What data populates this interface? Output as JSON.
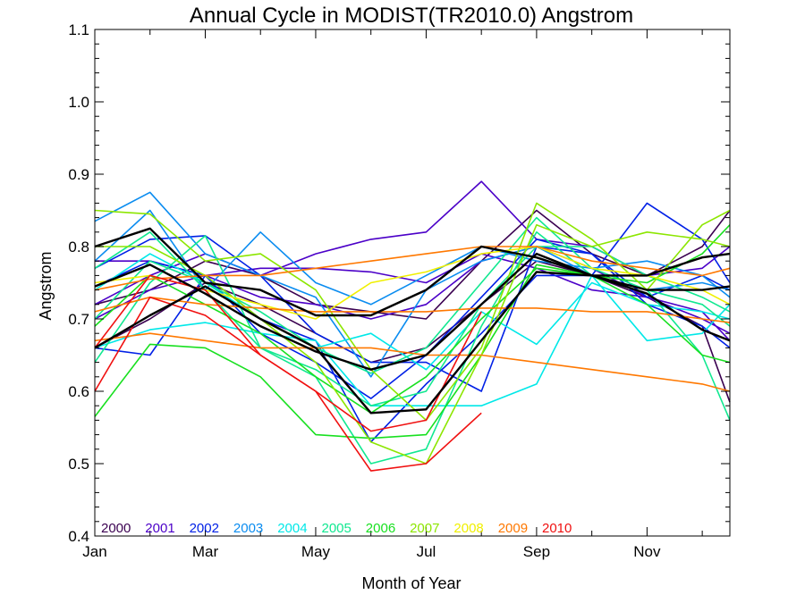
{
  "chart_data": {
    "type": "line",
    "title": "Annual Cycle in MODIST(TR2010.0) Angstrom",
    "xlabel": "Month of Year",
    "ylabel": "Angstrom",
    "xlim": [
      1,
      12.5
    ],
    "ylim": [
      0.4,
      1.1
    ],
    "x_tick_values": [
      1,
      3,
      5,
      7,
      9,
      11
    ],
    "x_tick_labels": [
      "Jan",
      "Mar",
      "May",
      "Jul",
      "Sep",
      "Nov"
    ],
    "y_tick_values": [
      0.4,
      0.5,
      0.6,
      0.7,
      0.8,
      0.9,
      1.0,
      1.1
    ],
    "y_tick_labels": [
      "0.4",
      "0.5",
      "0.6",
      "0.7",
      "0.8",
      "0.9",
      "1.0",
      "1.1"
    ],
    "legend_position": "bottom-left",
    "series": [
      {
        "name": "2000",
        "color": "#3a0050",
        "line_values": [
          [
            1,
            0.66,
            2,
            0.7,
            3,
            0.75,
            4,
            0.72,
            5,
            0.68,
            6,
            0.64,
            7,
            0.66,
            8,
            0.72,
            9,
            0.78,
            10,
            0.76,
            11,
            0.73,
            12,
            0.69,
            12.5,
            0.585
          ],
          [
            1,
            0.72,
            2,
            0.74,
            3,
            0.78,
            4,
            0.76,
            5,
            0.72,
            6,
            0.71,
            7,
            0.7,
            8,
            0.78,
            9,
            0.85,
            10,
            0.79,
            11,
            0.76,
            12,
            0.8,
            12.5,
            0.85
          ]
        ]
      },
      {
        "name": "2001",
        "color": "#4b00c8",
        "line_values": [
          [
            1,
            0.78,
            2,
            0.78,
            3,
            0.76,
            4,
            0.73,
            5,
            0.72,
            6,
            0.7,
            7,
            0.72,
            8,
            0.78,
            9,
            0.8,
            10,
            0.77,
            11,
            0.73,
            12,
            0.71,
            12.5,
            0.67
          ],
          [
            1,
            0.72,
            2,
            0.76,
            3,
            0.79,
            4,
            0.76,
            5,
            0.79,
            6,
            0.81,
            7,
            0.82,
            8,
            0.89,
            9,
            0.81,
            10,
            0.8,
            11,
            0.76,
            12,
            0.77,
            12.5,
            0.8
          ],
          [
            1,
            0.7,
            2,
            0.74,
            3,
            0.76,
            4,
            0.77,
            5,
            0.77,
            6,
            0.765,
            7,
            0.75,
            8,
            0.79,
            9,
            0.77,
            10,
            0.74,
            11,
            0.73,
            12,
            0.7,
            12.5,
            0.68
          ]
        ]
      },
      {
        "name": "2002",
        "color": "#0020e6",
        "line_values": [
          [
            1,
            0.66,
            2,
            0.65,
            3,
            0.76,
            4,
            0.7,
            5,
            0.67,
            6,
            0.53,
            7,
            0.61,
            8,
            0.68,
            9,
            0.76,
            10,
            0.76,
            11,
            0.86,
            12,
            0.81,
            12.5,
            0.75
          ],
          [
            1,
            0.77,
            2,
            0.81,
            3,
            0.815,
            4,
            0.76,
            5,
            0.68,
            6,
            0.64,
            7,
            0.64,
            8,
            0.6,
            9,
            0.8,
            10,
            0.79,
            11,
            0.73,
            12,
            0.76,
            12.5,
            0.74
          ],
          [
            1,
            0.745,
            2,
            0.78,
            3,
            0.76,
            4,
            0.68,
            5,
            0.64,
            6,
            0.59,
            7,
            0.65,
            8,
            0.73,
            9,
            0.81,
            10,
            0.79,
            11,
            0.72,
            12,
            0.69,
            12.5,
            0.66
          ]
        ]
      },
      {
        "name": "2003",
        "color": "#0a8cf0",
        "line_values": [
          [
            1,
            0.835,
            2,
            0.875,
            3,
            0.79,
            4,
            0.76,
            5,
            0.73,
            6,
            0.62,
            7,
            0.74,
            8,
            0.78,
            9,
            0.8,
            10,
            0.76,
            11,
            0.74,
            12,
            0.75,
            12.5,
            0.74
          ],
          [
            1,
            0.78,
            2,
            0.85,
            3,
            0.74,
            4,
            0.82,
            5,
            0.75,
            6,
            0.72,
            7,
            0.76,
            8,
            0.8,
            9,
            0.78,
            10,
            0.77,
            11,
            0.78,
            12,
            0.76,
            12.5,
            0.73
          ]
        ]
      },
      {
        "name": "2004",
        "color": "#00e8e8",
        "line_values": [
          [
            1,
            0.66,
            2,
            0.685,
            3,
            0.695,
            4,
            0.68,
            5,
            0.67,
            6,
            0.58,
            7,
            0.58,
            8,
            0.58,
            9,
            0.61,
            10,
            0.76,
            11,
            0.67,
            12,
            0.68,
            12.5,
            0.72
          ],
          [
            1,
            0.74,
            2,
            0.79,
            3,
            0.75,
            4,
            0.7,
            5,
            0.66,
            6,
            0.68,
            7,
            0.63,
            8,
            0.71,
            9,
            0.665,
            10,
            0.75,
            11,
            0.72,
            12,
            0.71,
            12.5,
            0.7
          ]
        ]
      },
      {
        "name": "2005",
        "color": "#10e890",
        "line_values": [
          [
            1,
            0.77,
            2,
            0.82,
            3,
            0.74,
            4,
            0.66,
            5,
            0.62,
            6,
            0.5,
            7,
            0.52,
            8,
            0.69,
            9,
            0.82,
            10,
            0.76,
            11,
            0.74,
            12,
            0.72,
            12.5,
            0.69
          ],
          [
            1,
            0.64,
            2,
            0.75,
            3,
            0.815,
            4,
            0.66,
            5,
            0.63,
            6,
            0.58,
            7,
            0.6,
            8,
            0.72,
            9,
            0.8,
            10,
            0.8,
            11,
            0.76,
            12,
            0.73,
            12.5,
            0.71
          ],
          [
            1,
            0.7,
            2,
            0.78,
            3,
            0.75,
            4,
            0.71,
            5,
            0.66,
            6,
            0.625,
            7,
            0.66,
            8,
            0.75,
            9,
            0.84,
            10,
            0.77,
            11,
            0.74,
            12,
            0.65,
            12.5,
            0.56
          ]
        ]
      },
      {
        "name": "2006",
        "color": "#18e020",
        "line_values": [
          [
            1,
            0.565,
            2,
            0.665,
            3,
            0.66,
            4,
            0.62,
            5,
            0.54,
            6,
            0.535,
            7,
            0.54,
            8,
            0.65,
            9,
            0.775,
            10,
            0.76,
            11,
            0.72,
            12,
            0.65,
            12.5,
            0.64
          ],
          [
            1,
            0.69,
            2,
            0.76,
            3,
            0.72,
            4,
            0.68,
            5,
            0.62,
            6,
            0.57,
            7,
            0.62,
            8,
            0.7,
            9,
            0.77,
            10,
            0.76,
            11,
            0.75,
            12,
            0.79,
            12.5,
            0.83
          ]
        ]
      },
      {
        "name": "2007",
        "color": "#8ce600",
        "line_values": [
          [
            1,
            0.85,
            2,
            0.845,
            3,
            0.78,
            4,
            0.79,
            5,
            0.74,
            6,
            0.63,
            7,
            0.56,
            8,
            0.66,
            9,
            0.86,
            10,
            0.81,
            11,
            0.74,
            12,
            0.83,
            12.5,
            0.85
          ],
          [
            1,
            0.8,
            2,
            0.8,
            3,
            0.76,
            4,
            0.7,
            5,
            0.64,
            6,
            0.53,
            7,
            0.5,
            8,
            0.65,
            9,
            0.83,
            10,
            0.8,
            11,
            0.82,
            12,
            0.81,
            12.5,
            0.8
          ]
        ]
      },
      {
        "name": "2008",
        "color": "#f0f000",
        "line_values": [
          [
            1,
            0.75,
            2,
            0.76,
            3,
            0.74,
            4,
            0.72,
            5,
            0.7,
            6,
            0.75,
            7,
            0.765,
            8,
            0.79,
            9,
            0.8,
            10,
            0.77,
            11,
            0.76,
            12,
            0.74,
            12.5,
            0.72
          ]
        ]
      },
      {
        "name": "2009",
        "color": "#ff7800",
        "line_values": [
          [
            1,
            0.74,
            2,
            0.755,
            3,
            0.76,
            4,
            0.76,
            5,
            0.77,
            6,
            0.78,
            7,
            0.79,
            8,
            0.8,
            9,
            0.8,
            10,
            0.78,
            11,
            0.77,
            12,
            0.76,
            12.5,
            0.77
          ],
          [
            1,
            0.71,
            2,
            0.73,
            3,
            0.72,
            4,
            0.715,
            5,
            0.71,
            6,
            0.71,
            7,
            0.71,
            8,
            0.715,
            9,
            0.715,
            10,
            0.71,
            11,
            0.71,
            12,
            0.7,
            12.5,
            0.695
          ],
          [
            1,
            0.67,
            2,
            0.68,
            3,
            0.67,
            4,
            0.66,
            5,
            0.66,
            6,
            0.66,
            7,
            0.65,
            8,
            0.65,
            9,
            0.64,
            10,
            0.63,
            11,
            0.62,
            12,
            0.61,
            12.5,
            0.6
          ]
        ]
      },
      {
        "name": "2010",
        "color": "#f01010",
        "line_values": [
          [
            1,
            0.6,
            2,
            0.73,
            3,
            0.705,
            4,
            0.65,
            5,
            0.6,
            6,
            0.49,
            7,
            0.5,
            8,
            0.57
          ],
          [
            1,
            0.66,
            2,
            0.76,
            3,
            0.74,
            4,
            0.65,
            5,
            0.6,
            6,
            0.545,
            7,
            0.56,
            8,
            0.71
          ]
        ]
      },
      {
        "name": "",
        "color": "#000000",
        "width": 2.4,
        "line_values": [
          [
            1,
            0.745,
            2,
            0.775,
            3,
            0.735,
            4,
            0.69,
            5,
            0.655,
            6,
            0.63,
            7,
            0.65,
            8,
            0.72,
            9,
            0.79,
            10,
            0.76,
            11,
            0.74,
            12,
            0.74,
            12.5,
            0.745
          ],
          [
            1,
            0.66,
            2,
            0.705,
            3,
            0.745,
            4,
            0.7,
            5,
            0.66,
            6,
            0.57,
            7,
            0.575,
            8,
            0.67,
            9,
            0.765,
            10,
            0.76,
            11,
            0.76,
            12,
            0.785,
            12.5,
            0.79
          ],
          [
            1,
            0.8,
            2,
            0.825,
            3,
            0.75,
            4,
            0.74,
            5,
            0.705,
            6,
            0.705,
            7,
            0.74,
            8,
            0.8,
            9,
            0.785,
            10,
            0.76,
            11,
            0.735,
            12,
            0.685,
            12.5,
            0.67
          ]
        ]
      }
    ]
  }
}
